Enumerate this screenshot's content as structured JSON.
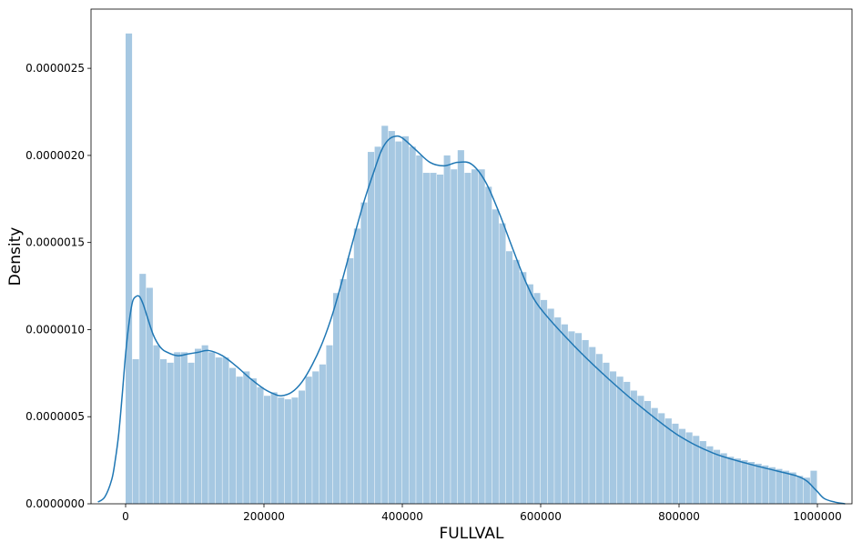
{
  "chart_data": {
    "type": "histogram",
    "title": "",
    "xlabel": "FULLVAL",
    "ylabel": "Density",
    "xlim": [
      -50000,
      1050000
    ],
    "ylim": [
      0,
      2.84e-06
    ],
    "xticks": [
      0,
      200000,
      400000,
      600000,
      800000,
      1000000
    ],
    "xtick_labels": [
      "0",
      "200000",
      "400000",
      "600000",
      "800000",
      "1000000"
    ],
    "yticks": [
      0,
      5e-07,
      1e-06,
      1.5e-06,
      2e-06,
      2.5e-06
    ],
    "ytick_labels": [
      "0.0000000",
      "0.0000005",
      "0.0000010",
      "0.0000015",
      "0.0000020",
      "0.0000025"
    ],
    "grid": false,
    "legend": "none",
    "colors": {
      "bars": "#a6c8e2",
      "kde_line": "#1f77b4",
      "axes": "#000000",
      "background": "#ffffff"
    },
    "bins": {
      "start": 0,
      "width": 10000,
      "density": [
        2.7e-06,
        8.3e-07,
        1.32e-06,
        1.24e-06,
        9.1e-07,
        8.3e-07,
        8.1e-07,
        8.7e-07,
        8.7e-07,
        8.1e-07,
        8.9e-07,
        9.1e-07,
        8.7e-07,
        8.4e-07,
        8.4e-07,
        7.8e-07,
        7.3e-07,
        7.6e-07,
        7.2e-07,
        6.7e-07,
        6.2e-07,
        6.4e-07,
        6.1e-07,
        6e-07,
        6.1e-07,
        6.5e-07,
        7.3e-07,
        7.6e-07,
        8e-07,
        9.1e-07,
        1.21e-06,
        1.29e-06,
        1.41e-06,
        1.58e-06,
        1.73e-06,
        2.02e-06,
        2.05e-06,
        2.17e-06,
        2.14e-06,
        2.08e-06,
        2.11e-06,
        2.05e-06,
        2e-06,
        1.9e-06,
        1.9e-06,
        1.89e-06,
        2e-06,
        1.92e-06,
        2.03e-06,
        1.9e-06,
        1.92e-06,
        1.92e-06,
        1.82e-06,
        1.69e-06,
        1.61e-06,
        1.45e-06,
        1.4e-06,
        1.33e-06,
        1.26e-06,
        1.21e-06,
        1.17e-06,
        1.12e-06,
        1.07e-06,
        1.03e-06,
        9.9e-07,
        9.8e-07,
        9.4e-07,
        9e-07,
        8.6e-07,
        8.1e-07,
        7.6e-07,
        7.3e-07,
        7e-07,
        6.5e-07,
        6.2e-07,
        5.9e-07,
        5.5e-07,
        5.2e-07,
        4.9e-07,
        4.6e-07,
        4.3e-07,
        4.1e-07,
        3.9e-07,
        3.6e-07,
        3.3e-07,
        3.1e-07,
        2.9e-07,
        2.7e-07,
        2.6e-07,
        2.5e-07,
        2.4e-07,
        2.3e-07,
        2.2e-07,
        2.1e-07,
        2e-07,
        1.9e-07,
        1.8e-07,
        1.6e-07,
        1.5e-07,
        1.9e-07
      ]
    },
    "kde": {
      "x": [
        -40000,
        -30000,
        -20000,
        -15000,
        -10000,
        -5000,
        0,
        5000,
        10000,
        15000,
        20000,
        25000,
        30000,
        40000,
        50000,
        60000,
        75000,
        90000,
        105000,
        120000,
        140000,
        160000,
        180000,
        200000,
        215000,
        225000,
        240000,
        255000,
        270000,
        285000,
        300000,
        315000,
        330000,
        345000,
        360000,
        370000,
        380000,
        390000,
        400000,
        420000,
        440000,
        460000,
        480000,
        500000,
        520000,
        540000,
        560000,
        580000,
        600000,
        650000,
        700000,
        750000,
        800000,
        850000,
        900000,
        940000,
        970000,
        985000,
        995000,
        1000000,
        1010000,
        1025000,
        1040000
      ],
      "y": [
        1e-08,
        4e-08,
        1.4e-07,
        2.5e-07,
        4e-07,
        6.2e-07,
        8.6e-07,
        1.04e-06,
        1.16e-06,
        1.19e-06,
        1.19e-06,
        1.15e-06,
        1.09e-06,
        9.7e-07,
        9e-07,
        8.7e-07,
        8.5e-07,
        8.6e-07,
        8.7e-07,
        8.8e-07,
        8.5e-07,
        7.9e-07,
        7.2e-07,
        6.6e-07,
        6.3e-07,
        6.2e-07,
        6.4e-07,
        7e-07,
        8e-07,
        9.3e-07,
        1.1e-06,
        1.31e-06,
        1.53e-06,
        1.74e-06,
        1.92e-06,
        2.03e-06,
        2.09e-06,
        2.11e-06,
        2.1e-06,
        2.03e-06,
        1.96e-06,
        1.94e-06,
        1.96e-06,
        1.95e-06,
        1.85e-06,
        1.67e-06,
        1.46e-06,
        1.26e-06,
        1.12e-06,
        9e-07,
        7.1e-07,
        5.4e-07,
        3.9e-07,
        2.9e-07,
        2.3e-07,
        1.9e-07,
        1.6e-07,
        1.3e-07,
        9e-08,
        7e-08,
        3e-08,
        1e-08,
        0.0
      ]
    }
  }
}
